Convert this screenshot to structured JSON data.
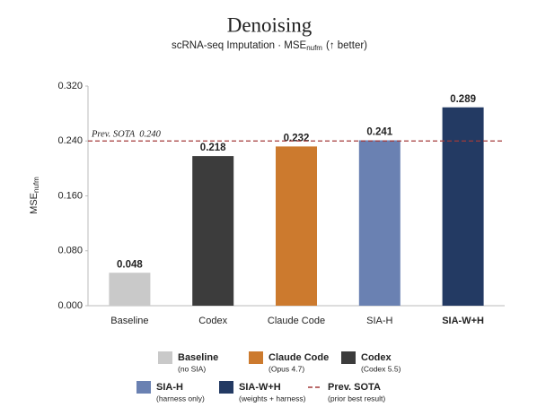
{
  "chart_data": {
    "type": "bar",
    "title": "Denoising",
    "subtitle": {
      "text": "scRNA-seq Imputation · MSE",
      "subscript": "nufm",
      "suffix": "(↑ better)"
    },
    "y_label": {
      "text": "MSE",
      "subscript": "nufm"
    },
    "categories": [
      "Baseline",
      "Codex",
      "Claude Code",
      "SIA-H",
      "SIA-W+H"
    ],
    "values": [
      0.048,
      0.218,
      0.232,
      0.241,
      0.289
    ],
    "colors": [
      "#c9c9c9",
      "#3c3c3c",
      "#cc7a2e",
      "#6a81b2",
      "#233a63"
    ],
    "label_colors": [
      "#222222",
      "#222222",
      "#cc7a2e",
      "#6a81b2",
      "#233a63"
    ],
    "ylim": [
      0,
      0.32
    ],
    "yticks": [
      {
        "value": 0,
        "label": "0.000"
      },
      {
        "value": 0.08,
        "label": "0.080"
      },
      {
        "value": 0.16,
        "label": "0.160"
      },
      {
        "value": 0.24,
        "label": "0.240"
      },
      {
        "value": 0.32,
        "label": "0.320"
      }
    ],
    "reference": {
      "value": 0.24,
      "label": "Prev. SOTA",
      "value_label": "0.240",
      "color": "#a33a3a"
    },
    "legend": [
      {
        "name": "Baseline",
        "note": "(no SIA)",
        "color": "#c9c9c9"
      },
      {
        "name": "Claude Code",
        "note": "(Opus 4.7)",
        "color": "#cc7a2e"
      },
      {
        "name": "Codex",
        "note": "(Codex 5.5)",
        "color": "#3c3c3c"
      },
      {
        "name": "SIA-H",
        "note": "(harness only)",
        "color": "#6a81b2"
      },
      {
        "name": "SIA-W+H",
        "note": "(weights + harness)",
        "color": "#233a63"
      },
      {
        "name": "Prev. SOTA",
        "note": "(prior best result)",
        "color": "#a33a3a",
        "dashed": true
      }
    ]
  }
}
